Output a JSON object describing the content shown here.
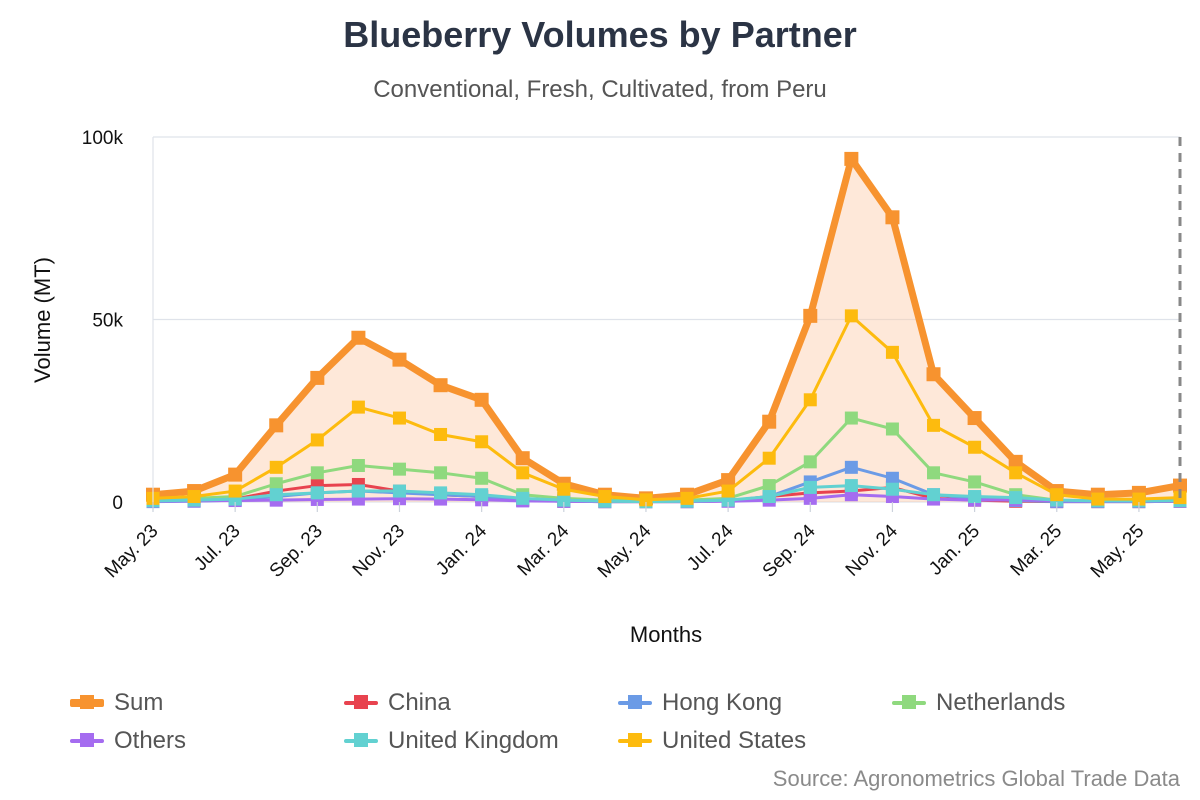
{
  "title": "Blueberry Volumes by Partner",
  "subtitle": "Conventional, Fresh, Cultivated, from Peru",
  "source": "Source: Agronometrics Global Trade Data",
  "chart_data": {
    "type": "line",
    "title": "Blueberry Volumes by Partner",
    "subtitle": "Conventional, Fresh, Cultivated, from Peru",
    "xlabel": "Months",
    "ylabel": "Volume (MT)",
    "ylim": [
      0,
      100000
    ],
    "yticks": [
      {
        "value": 0,
        "label": "0"
      },
      {
        "value": 50000,
        "label": "50k"
      },
      {
        "value": 100000,
        "label": "100k"
      }
    ],
    "grid": "horizontal",
    "legend_position": "bottom",
    "x": [
      "May. 23",
      "Jun. 23",
      "Jul. 23",
      "Aug. 23",
      "Sep. 23",
      "Oct. 23",
      "Nov. 23",
      "Dec. 23",
      "Jan. 24",
      "Feb. 24",
      "Mar. 24",
      "Apr. 24",
      "May. 24",
      "Jun. 24",
      "Jul. 24",
      "Aug. 24",
      "Sep. 24",
      "Oct. 24",
      "Nov. 24",
      "Dec. 24",
      "Jan. 25",
      "Feb. 25",
      "Mar. 25",
      "Apr. 25",
      "May. 25",
      "Jun. 25"
    ],
    "x_tick_labels": [
      "May. 23",
      "Jul. 23",
      "Sep. 23",
      "Nov. 23",
      "Jan. 24",
      "Mar. 24",
      "May. 24",
      "Jul. 24",
      "Sep. 24",
      "Nov. 24",
      "Jan. 25",
      "Mar. 25",
      "May. 25"
    ],
    "series": [
      {
        "name": "Sum",
        "color": "#f7932f",
        "area": true,
        "values": [
          2000,
          3000,
          7500,
          21000,
          34000,
          45000,
          39000,
          32000,
          28000,
          12000,
          5000,
          2000,
          1000,
          2000,
          6000,
          22000,
          51000,
          94000,
          78000,
          35000,
          23000,
          11000,
          3000,
          2000,
          2500,
          4500
        ]
      },
      {
        "name": "China",
        "color": "#e8434f",
        "values": [
          200,
          300,
          800,
          3000,
          4500,
          4800,
          3000,
          2000,
          1500,
          500,
          200,
          100,
          100,
          100,
          300,
          1500,
          2500,
          3000,
          4000,
          1000,
          500,
          200,
          100,
          100,
          100,
          200
        ]
      },
      {
        "name": "Hong Kong",
        "color": "#6b9be6",
        "values": [
          100,
          200,
          500,
          1500,
          2500,
          3000,
          2500,
          2000,
          1500,
          500,
          200,
          100,
          100,
          100,
          300,
          1500,
          5500,
          9500,
          6500,
          2000,
          1000,
          400,
          100,
          100,
          100,
          200
        ]
      },
      {
        "name": "Netherlands",
        "color": "#8fd97e",
        "values": [
          500,
          1000,
          1500,
          5000,
          8000,
          10000,
          9000,
          8000,
          6500,
          2000,
          1000,
          500,
          200,
          500,
          1000,
          4500,
          11000,
          23000,
          20000,
          8000,
          5500,
          2000,
          500,
          300,
          300,
          500
        ]
      },
      {
        "name": "Others",
        "color": "#a56cf0",
        "values": [
          200,
          300,
          400,
          500,
          700,
          800,
          900,
          800,
          600,
          300,
          200,
          100,
          100,
          100,
          200,
          500,
          1000,
          2000,
          1500,
          800,
          500,
          600,
          300,
          200,
          200,
          300
        ]
      },
      {
        "name": "United Kingdom",
        "color": "#62d1d1",
        "values": [
          300,
          500,
          800,
          2000,
          2500,
          3000,
          3000,
          2500,
          2000,
          1000,
          500,
          200,
          100,
          200,
          500,
          1500,
          4000,
          4500,
          3500,
          2000,
          1500,
          1200,
          500,
          300,
          300,
          400
        ]
      },
      {
        "name": "United States",
        "color": "#fdbb0e",
        "values": [
          1000,
          1500,
          3000,
          9500,
          17000,
          26000,
          23000,
          18500,
          16500,
          8000,
          3500,
          1500,
          600,
          1000,
          3000,
          12000,
          28000,
          51000,
          41000,
          21000,
          15000,
          8000,
          2000,
          800,
          800,
          1200
        ]
      }
    ]
  }
}
